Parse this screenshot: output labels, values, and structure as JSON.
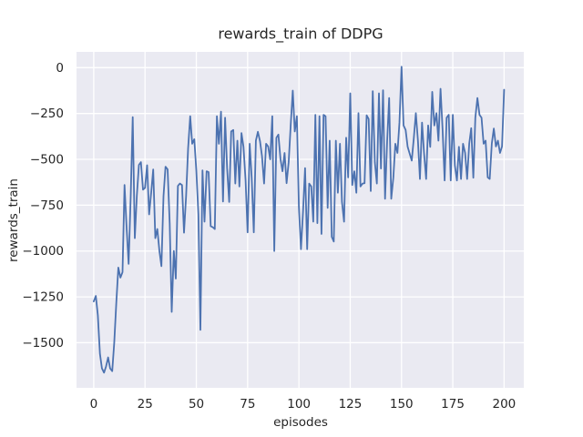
{
  "chart_data": {
    "type": "line",
    "title": "rewards_train of DDPG",
    "xlabel": "episodes",
    "ylabel": "rewards_train",
    "x_ticks": [
      0,
      25,
      50,
      75,
      100,
      125,
      150,
      175,
      200
    ],
    "x_tick_labels": [
      "0",
      "25",
      "50",
      "75",
      "100",
      "125",
      "150",
      "175",
      "200"
    ],
    "y_ticks": [
      0,
      -250,
      -500,
      -750,
      -1000,
      -1250,
      -1500
    ],
    "y_tick_labels": [
      "0",
      "−250",
      "−500",
      "−750",
      "−1000",
      "−1250",
      "−1500"
    ],
    "xlim": [
      -8.4,
      209.6
    ],
    "ylim": [
      -1746,
      86
    ],
    "grid": true,
    "legend": false,
    "line_color": "#4c72b0",
    "plot_bg": "#eaeaf2",
    "grid_color": "#ffffff",
    "text_color": "#262626",
    "series": [
      {
        "name": "rewards_train",
        "x_start": 0,
        "x_step": 1,
        "values": [
          -1275,
          -1245,
          -1350,
          -1560,
          -1640,
          -1663,
          -1630,
          -1580,
          -1640,
          -1655,
          -1500,
          -1280,
          -1090,
          -1145,
          -1115,
          -640,
          -875,
          -1070,
          -700,
          -270,
          -930,
          -700,
          -530,
          -515,
          -665,
          -655,
          -532,
          -800,
          -680,
          -555,
          -930,
          -880,
          -1000,
          -1082,
          -700,
          -540,
          -555,
          -850,
          -1332,
          -1000,
          -1150,
          -645,
          -632,
          -640,
          -900,
          -700,
          -440,
          -265,
          -415,
          -390,
          -560,
          -800,
          -1430,
          -560,
          -840,
          -565,
          -570,
          -865,
          -870,
          -880,
          -265,
          -415,
          -240,
          -730,
          -273,
          -548,
          -732,
          -348,
          -340,
          -632,
          -398,
          -648,
          -357,
          -432,
          -615,
          -898,
          -415,
          -600,
          -898,
          -398,
          -350,
          -400,
          -482,
          -632,
          -415,
          -430,
          -500,
          -265,
          -1000,
          -382,
          -365,
          -498,
          -565,
          -465,
          -630,
          -515,
          -315,
          -125,
          -348,
          -265,
          -757,
          -990,
          -782,
          -548,
          -990,
          -632,
          -648,
          -840,
          -257,
          -848,
          -265,
          -907,
          -257,
          -265,
          -765,
          -398,
          -923,
          -948,
          -398,
          -682,
          -415,
          -732,
          -840,
          -382,
          -598,
          -140,
          -640,
          -565,
          -682,
          -248,
          -648,
          -632,
          -630,
          -260,
          -280,
          -673,
          -128,
          -515,
          -632,
          -140,
          -550,
          -123,
          -715,
          -400,
          -165,
          -715,
          -600,
          -415,
          -465,
          -300,
          5,
          -315,
          -340,
          -432,
          -470,
          -507,
          -382,
          -248,
          -398,
          -607,
          -300,
          -465,
          -607,
          -315,
          -432,
          -132,
          -315,
          -248,
          -398,
          -115,
          -332,
          -615,
          -273,
          -257,
          -615,
          -257,
          -532,
          -615,
          -432,
          -607,
          -415,
          -465,
          -607,
          -415,
          -330,
          -600,
          -273,
          -165,
          -257,
          -273,
          -415,
          -398,
          -598,
          -607,
          -413,
          -332,
          -430,
          -398,
          -465,
          -430,
          -120
        ]
      }
    ]
  }
}
